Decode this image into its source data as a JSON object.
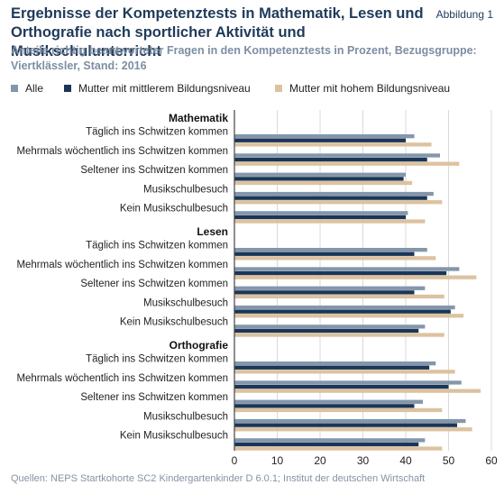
{
  "header": {
    "title": "Ergebnisse der Kompetenztests in Mathematik, Lesen und Orthografie nach sportlicher Aktivität und Musikschulunterricht",
    "figure_label": "Abbildung 1",
    "subtitle": "Anteile richtig beantworteter Fragen in den Kompetenztests in Prozent, Bezugsgruppe: Viertklässler, Stand: 2016"
  },
  "footer": {
    "source": "Quellen: NEPS Startkohorte SC2 Kindergartenkinder D 6.0.1; Institut der deutschen Wirtschaft"
  },
  "colors": {
    "alle": "#8496ab",
    "mittel": "#1b3657",
    "hoch": "#dcc29f",
    "grid": "#d9d9d9",
    "axis": "#444444"
  },
  "chart_data": {
    "type": "bar",
    "orientation": "horizontal",
    "series": [
      {
        "name": "Alle"
      },
      {
        "name": "Mutter mit mittlerem Bildungsniveau"
      },
      {
        "name": "Mutter mit hohem Bildungsniveau"
      }
    ],
    "groups": [
      {
        "name": "Mathematik",
        "categories": [
          {
            "label": "Täglich ins Schwitzen kommen",
            "values": [
              42,
              40,
              46
            ]
          },
          {
            "label": "Mehrmals wöchentlich ins Schwitzen kommen",
            "values": [
              48,
              45,
              52.5
            ]
          },
          {
            "label": "Seltener ins Schwitzen kommen",
            "values": [
              40,
              39.5,
              41.5
            ]
          },
          {
            "label": "Musikschulbesuch",
            "values": [
              46.5,
              45,
              48.5
            ]
          },
          {
            "label": "Kein Musikschulbesuch",
            "values": [
              40.5,
              40,
              44.5
            ]
          }
        ]
      },
      {
        "name": "Lesen",
        "categories": [
          {
            "label": "Täglich ins Schwitzen kommen",
            "values": [
              45,
              42,
              47
            ]
          },
          {
            "label": "Mehrmals wöchentlich ins Schwitzen kommen",
            "values": [
              52.5,
              49.5,
              56.5
            ]
          },
          {
            "label": "Seltener ins Schwitzen kommen",
            "values": [
              44.5,
              42,
              49
            ]
          },
          {
            "label": "Musikschulbesuch",
            "values": [
              51.5,
              50.5,
              53.5
            ]
          },
          {
            "label": "Kein Musikschulbesuch",
            "values": [
              44.5,
              43,
              49
            ]
          }
        ]
      },
      {
        "name": "Orthografie",
        "categories": [
          {
            "label": "Täglich ins Schwitzen kommen",
            "values": [
              47,
              45.5,
              51.5
            ]
          },
          {
            "label": "Mehrmals wöchentlich ins Schwitzen kommen",
            "values": [
              53,
              50,
              57.5
            ]
          },
          {
            "label": "Seltener ins Schwitzen kommen",
            "values": [
              44,
              42,
              48.5
            ]
          },
          {
            "label": "Musikschulbesuch",
            "values": [
              54,
              52,
              55.5
            ]
          },
          {
            "label": "Kein Musikschulbesuch",
            "values": [
              44.5,
              43,
              48.5
            ]
          }
        ]
      }
    ],
    "xlim": [
      0,
      60
    ],
    "xticks": [
      0,
      10,
      20,
      30,
      40,
      50,
      60
    ],
    "grid": "vertical",
    "legend_position": "top-left"
  }
}
